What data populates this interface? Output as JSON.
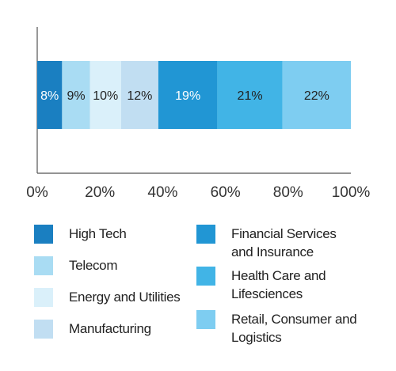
{
  "chart_data": {
    "type": "bar",
    "orientation": "horizontal-stacked-100",
    "title": "",
    "xlabel": "",
    "ylabel": "",
    "xlim": [
      0,
      100
    ],
    "x_ticks": [
      "0%",
      "20%",
      "40%",
      "60%",
      "80%",
      "100%"
    ],
    "grid": false,
    "legend_position": "bottom",
    "series": [
      {
        "name": "High Tech",
        "value": 8,
        "label": "8%",
        "color": "#1a7fc1",
        "label_color": "#ffffff"
      },
      {
        "name": "Telecom",
        "value": 9,
        "label": "9%",
        "color": "#a9dcf3",
        "label_color": "#222222"
      },
      {
        "name": "Energy and Utilities",
        "value": 10,
        "label": "10%",
        "color": "#daf0fa",
        "label_color": "#222222"
      },
      {
        "name": "Manufacturing",
        "value": 12,
        "label": "12%",
        "color": "#c1def2",
        "label_color": "#222222"
      },
      {
        "name": "Financial Services and Insurance",
        "value": 19,
        "label": "19%",
        "color": "#2196d4",
        "label_color": "#ffffff"
      },
      {
        "name": "Health Care and Lifesciences",
        "value": 21,
        "label": "21%",
        "color": "#41b4e6",
        "label_color": "#222222"
      },
      {
        "name": "Retail, Consumer and Logistics",
        "value": 22,
        "label": "22%",
        "color": "#7ecdf1",
        "label_color": "#222222"
      }
    ]
  },
  "legend": {
    "left": [
      {
        "label": "High Tech",
        "color": "#1a7fc1"
      },
      {
        "label": "Telecom",
        "color": "#a9dcf3"
      },
      {
        "label": "Energy and Utilities",
        "color": "#daf0fa"
      },
      {
        "label": "Manufacturing",
        "color": "#c1def2"
      }
    ],
    "right": [
      {
        "label": "Financial Services\nand Insurance",
        "color": "#2196d4"
      },
      {
        "label": "Health Care and\nLifesciences",
        "color": "#41b4e6"
      },
      {
        "label": "Retail, Consumer and\nLogistics",
        "color": "#7ecdf1"
      }
    ]
  },
  "colors": {
    "axis": "#555555",
    "text": "#222222"
  }
}
